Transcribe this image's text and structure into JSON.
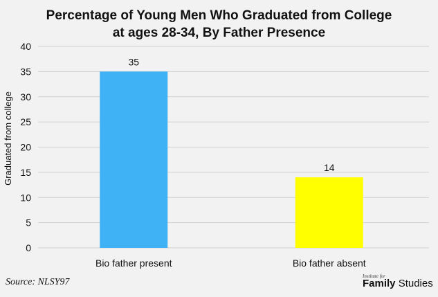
{
  "chart_data": {
    "type": "bar",
    "title_lines": [
      "Percentage of Young Men Who Graduated from College",
      "at ages 28-34, By Father Presence"
    ],
    "xlabel": "",
    "ylabel": "Graduated from college",
    "categories": [
      "Bio father present",
      "Bio father absent"
    ],
    "values": [
      35,
      14
    ],
    "value_labels": [
      "35",
      "14"
    ],
    "bar_colors": [
      "#3fb1f5",
      "#ffff00"
    ],
    "ylim": [
      0,
      40
    ],
    "yticks": [
      0,
      5,
      10,
      15,
      20,
      25,
      30,
      35,
      40
    ],
    "grid": true,
    "legend": "none"
  },
  "source": "Source: NLSY97",
  "logo": {
    "small": "Institute for",
    "word1": "Family",
    "word2": "Studies"
  }
}
